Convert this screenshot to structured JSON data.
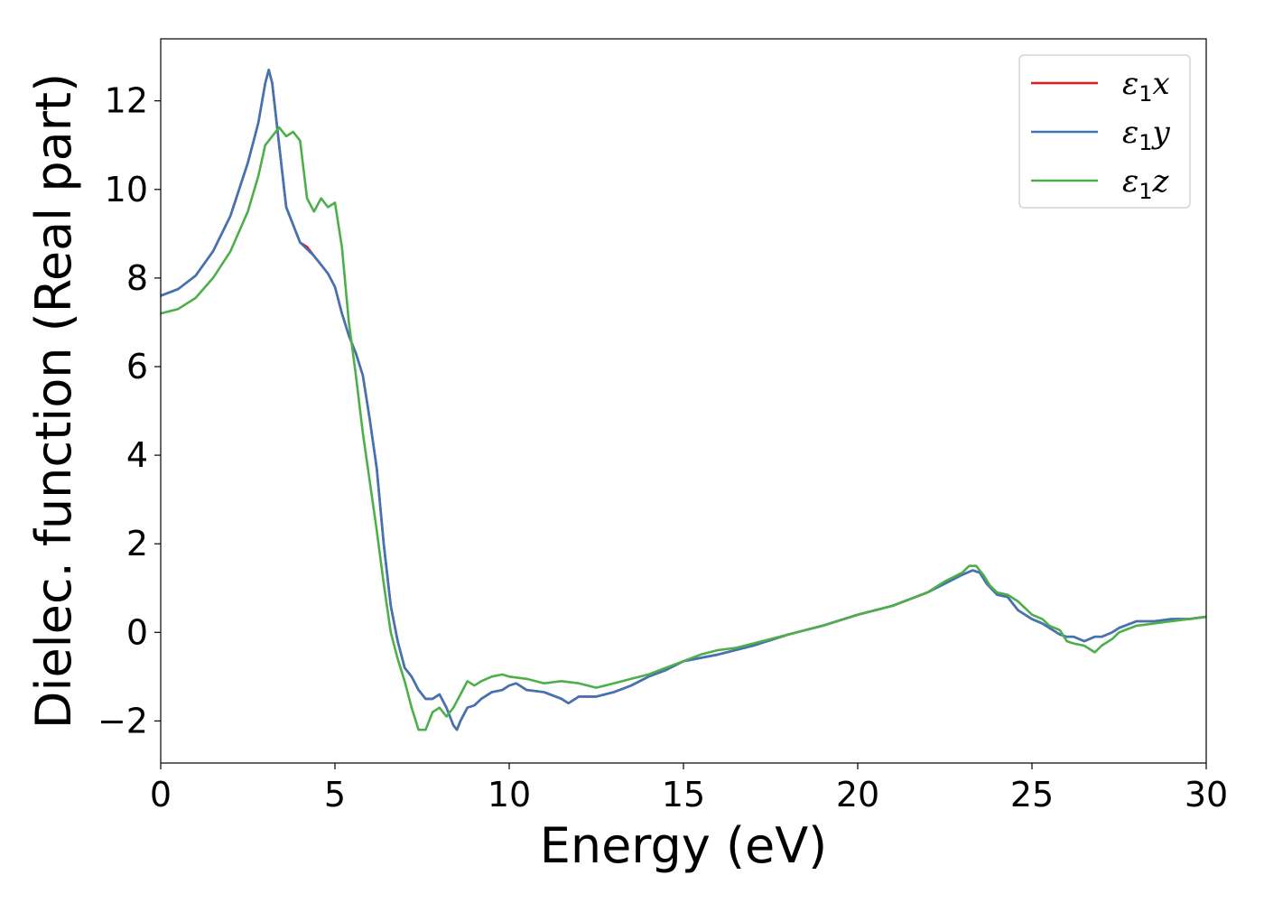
{
  "chart_data": {
    "type": "line",
    "title": "",
    "xlabel": "Energy (eV)",
    "ylabel": "Dielec. function (Real part)",
    "xlim": [
      0,
      30
    ],
    "ylim": [
      -2.95,
      13.4
    ],
    "xticks": [
      0,
      5,
      10,
      15,
      20,
      25,
      30
    ],
    "xtick_labels": [
      "0",
      "5",
      "10",
      "15",
      "20",
      "25",
      "30"
    ],
    "yticks": [
      -2,
      0,
      2,
      4,
      6,
      8,
      10,
      12
    ],
    "ytick_labels": [
      "−2",
      "0",
      "2",
      "4",
      "6",
      "8",
      "10",
      "12"
    ],
    "grid": false,
    "legend_position": "top-right",
    "series": [
      {
        "name": "ε₁x",
        "symbol": "ε",
        "subscript": "1",
        "suffix": "x",
        "color": "#e41a1c",
        "x": [
          0,
          0.5,
          1,
          1.5,
          2,
          2.5,
          2.8,
          3.0,
          3.1,
          3.2,
          3.4,
          3.6,
          3.8,
          4.0,
          4.2,
          4.4,
          4.6,
          4.8,
          5.0,
          5.2,
          5.4,
          5.6,
          5.8,
          6.0,
          6.2,
          6.4,
          6.6,
          6.8,
          7.0,
          7.2,
          7.4,
          7.6,
          7.8,
          8.0,
          8.2,
          8.4,
          8.5,
          8.6,
          8.8,
          9.0,
          9.2,
          9.5,
          9.8,
          10.0,
          10.2,
          10.5,
          11.0,
          11.5,
          11.7,
          12.0,
          12.5,
          13.0,
          13.5,
          14.0,
          14.5,
          15.0,
          16.0,
          17.0,
          18.0,
          19.0,
          20.0,
          21.0,
          22.0,
          22.5,
          23.0,
          23.3,
          23.5,
          23.7,
          24.0,
          24.3,
          24.6,
          25.0,
          25.3,
          25.5,
          25.8,
          26.0,
          26.2,
          26.5,
          26.8,
          27.0,
          27.3,
          27.5,
          28.0,
          28.5,
          29.0,
          29.5,
          30.0
        ],
        "y": [
          7.6,
          7.75,
          8.05,
          8.6,
          9.4,
          10.6,
          11.5,
          12.4,
          12.7,
          12.4,
          11.0,
          9.6,
          9.2,
          8.8,
          8.7,
          8.5,
          8.3,
          8.1,
          7.8,
          7.2,
          6.7,
          6.3,
          5.8,
          4.8,
          3.7,
          2.0,
          0.6,
          -0.2,
          -0.8,
          -1.0,
          -1.3,
          -1.5,
          -1.5,
          -1.4,
          -1.7,
          -2.1,
          -2.2,
          -2.0,
          -1.7,
          -1.65,
          -1.5,
          -1.35,
          -1.3,
          -1.2,
          -1.15,
          -1.3,
          -1.35,
          -1.5,
          -1.6,
          -1.45,
          -1.45,
          -1.35,
          -1.2,
          -1.0,
          -0.85,
          -0.65,
          -0.5,
          -0.3,
          -0.05,
          0.15,
          0.4,
          0.6,
          0.9,
          1.1,
          1.3,
          1.4,
          1.35,
          1.1,
          0.85,
          0.8,
          0.5,
          0.3,
          0.2,
          0.1,
          -0.05,
          -0.1,
          -0.1,
          -0.2,
          -0.1,
          -0.1,
          0.0,
          0.1,
          0.25,
          0.25,
          0.3,
          0.3,
          0.35
        ]
      },
      {
        "name": "ε₁y",
        "symbol": "ε",
        "subscript": "1",
        "suffix": "y",
        "color": "#3f74b5",
        "x": [
          0,
          0.5,
          1,
          1.5,
          2,
          2.5,
          2.8,
          3.0,
          3.1,
          3.2,
          3.4,
          3.6,
          3.8,
          4.0,
          4.2,
          4.4,
          4.6,
          4.8,
          5.0,
          5.2,
          5.4,
          5.6,
          5.8,
          6.0,
          6.2,
          6.4,
          6.6,
          6.8,
          7.0,
          7.2,
          7.4,
          7.6,
          7.8,
          8.0,
          8.2,
          8.4,
          8.5,
          8.6,
          8.8,
          9.0,
          9.2,
          9.5,
          9.8,
          10.0,
          10.2,
          10.5,
          11.0,
          11.5,
          11.7,
          12.0,
          12.5,
          13.0,
          13.5,
          14.0,
          14.5,
          15.0,
          16.0,
          17.0,
          18.0,
          19.0,
          20.0,
          21.0,
          22.0,
          22.5,
          23.0,
          23.3,
          23.5,
          23.7,
          24.0,
          24.3,
          24.6,
          25.0,
          25.3,
          25.5,
          25.8,
          26.0,
          26.2,
          26.5,
          26.8,
          27.0,
          27.3,
          27.5,
          28.0,
          28.5,
          29.0,
          29.5,
          30.0
        ],
        "y": [
          7.6,
          7.75,
          8.05,
          8.6,
          9.4,
          10.6,
          11.5,
          12.4,
          12.7,
          12.4,
          11.0,
          9.6,
          9.2,
          8.8,
          8.65,
          8.5,
          8.3,
          8.1,
          7.8,
          7.2,
          6.7,
          6.3,
          5.8,
          4.8,
          3.7,
          2.0,
          0.6,
          -0.2,
          -0.8,
          -1.0,
          -1.3,
          -1.5,
          -1.5,
          -1.4,
          -1.7,
          -2.1,
          -2.2,
          -2.0,
          -1.7,
          -1.65,
          -1.5,
          -1.35,
          -1.3,
          -1.2,
          -1.15,
          -1.3,
          -1.35,
          -1.5,
          -1.6,
          -1.45,
          -1.45,
          -1.35,
          -1.2,
          -1.0,
          -0.85,
          -0.65,
          -0.5,
          -0.3,
          -0.05,
          0.15,
          0.4,
          0.6,
          0.9,
          1.1,
          1.3,
          1.4,
          1.35,
          1.1,
          0.85,
          0.8,
          0.5,
          0.3,
          0.2,
          0.1,
          -0.05,
          -0.1,
          -0.1,
          -0.2,
          -0.1,
          -0.1,
          0.0,
          0.1,
          0.25,
          0.25,
          0.3,
          0.3,
          0.35
        ]
      },
      {
        "name": "ε₁z",
        "symbol": "ε",
        "subscript": "1",
        "suffix": "z",
        "color": "#4daf4a",
        "x": [
          0,
          0.5,
          1,
          1.5,
          2,
          2.5,
          2.8,
          3.0,
          3.2,
          3.4,
          3.6,
          3.8,
          4.0,
          4.2,
          4.4,
          4.6,
          4.8,
          5.0,
          5.2,
          5.4,
          5.6,
          5.8,
          6.0,
          6.2,
          6.4,
          6.6,
          6.8,
          7.0,
          7.2,
          7.4,
          7.6,
          7.8,
          8.0,
          8.2,
          8.4,
          8.6,
          8.8,
          9.0,
          9.2,
          9.5,
          9.8,
          10.0,
          10.5,
          11.0,
          11.5,
          12.0,
          12.5,
          13.0,
          13.5,
          14.0,
          14.5,
          15.0,
          15.5,
          16.0,
          16.5,
          17.0,
          18.0,
          19.0,
          20.0,
          21.0,
          22.0,
          22.5,
          23.0,
          23.2,
          23.4,
          23.6,
          23.8,
          24.0,
          24.3,
          24.6,
          25.0,
          25.3,
          25.5,
          25.8,
          26.0,
          26.2,
          26.5,
          26.8,
          27.0,
          27.3,
          27.5,
          28.0,
          28.5,
          29.0,
          29.5,
          30.0
        ],
        "y": [
          7.2,
          7.3,
          7.55,
          8.0,
          8.6,
          9.5,
          10.3,
          11.0,
          11.2,
          11.4,
          11.2,
          11.3,
          11.1,
          9.8,
          9.5,
          9.8,
          9.6,
          9.7,
          8.7,
          7.0,
          5.8,
          4.5,
          3.4,
          2.3,
          1.1,
          0.0,
          -0.6,
          -1.1,
          -1.7,
          -2.2,
          -2.2,
          -1.8,
          -1.7,
          -1.9,
          -1.7,
          -1.4,
          -1.1,
          -1.2,
          -1.1,
          -1.0,
          -0.95,
          -1.0,
          -1.05,
          -1.15,
          -1.1,
          -1.15,
          -1.25,
          -1.15,
          -1.05,
          -0.95,
          -0.8,
          -0.65,
          -0.5,
          -0.4,
          -0.35,
          -0.25,
          -0.05,
          0.15,
          0.4,
          0.6,
          0.9,
          1.15,
          1.35,
          1.5,
          1.5,
          1.3,
          1.05,
          0.9,
          0.85,
          0.7,
          0.4,
          0.3,
          0.15,
          0.05,
          -0.2,
          -0.25,
          -0.3,
          -0.45,
          -0.3,
          -0.15,
          0.0,
          0.15,
          0.2,
          0.25,
          0.3,
          0.35
        ]
      }
    ]
  }
}
